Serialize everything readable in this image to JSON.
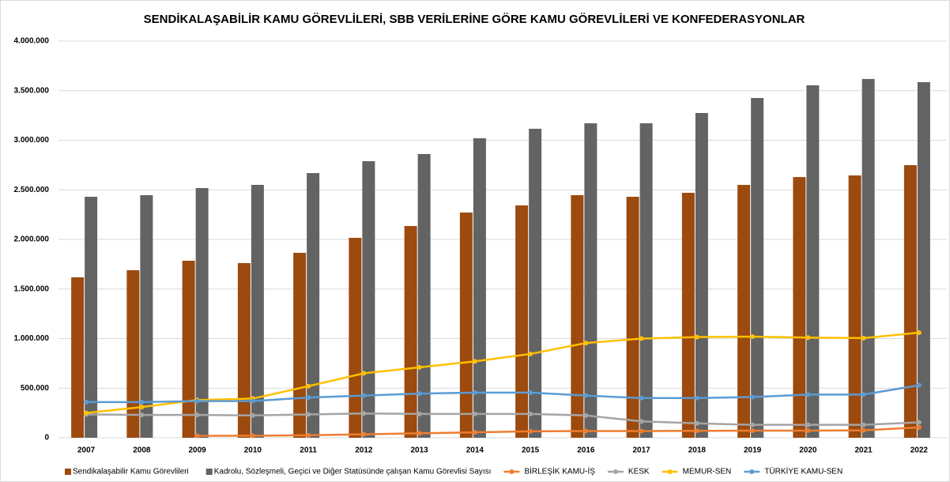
{
  "chart_data": {
    "type": "bar",
    "title": "SENDİKALAŞABİLİR KAMU GÖREVLİLERİ, SBB VERİLERİNE GÖRE KAMU GÖREVLİLERİ VE KONFEDERASYONLAR",
    "categories": [
      "2007",
      "2008",
      "2009",
      "2010",
      "2011",
      "2012",
      "2013",
      "2014",
      "2015",
      "2016",
      "2017",
      "2018",
      "2019",
      "2020",
      "2021",
      "2022"
    ],
    "ylim": [
      0,
      4000000
    ],
    "yticks": [
      0,
      {
        "value": 500000,
        "label": "500.000"
      },
      {
        "value": 1000000,
        "label": "1.000.000"
      },
      {
        "value": 1500000,
        "label": "1.500.000"
      },
      {
        "value": 2000000,
        "label": "2.000.000"
      },
      {
        "value": 2500000,
        "label": "2.500.000"
      },
      {
        "value": 3000000,
        "label": "3.000.000"
      },
      {
        "value": 3500000,
        "label": "3.500.000"
      },
      {
        "value": 4000000,
        "label": "4.000.000"
      }
    ],
    "grid": true,
    "legend": "bottom",
    "series": [
      {
        "name": "Sendikalaşabilir Kamu Görevlileri",
        "type": "bar",
        "color": "#9c4a0e",
        "values": [
          1618000,
          1689000,
          1785000,
          1761000,
          1865000,
          2016000,
          2135000,
          2271000,
          2343000,
          2446000,
          2430000,
          2470000,
          2550000,
          2629000,
          2645000,
          2749000
        ]
      },
      {
        "name": "Kadrolu, Sözleşmeli, Geçici ve Diğer Statüsünde çalışan Kamu Görevlisi Sayısı",
        "type": "bar",
        "color": "#636363",
        "values": [
          2430000,
          2446000,
          2518000,
          2550000,
          2669000,
          2789000,
          2861000,
          3020000,
          3116000,
          3171000,
          3171000,
          3275000,
          3426000,
          3554000,
          3618000,
          3586000
        ]
      },
      {
        "name": "BİRLEŞİK KAMU-İŞ",
        "type": "line",
        "color": "#ed7d31",
        "values": [
          null,
          null,
          20000,
          20000,
          25000,
          35000,
          45000,
          55000,
          65000,
          68000,
          68000,
          70000,
          72000,
          72000,
          75000,
          105000
        ]
      },
      {
        "name": "KESK",
        "type": "line",
        "color": "#a5a5a5",
        "values": [
          235000,
          230000,
          230000,
          225000,
          235000,
          245000,
          240000,
          240000,
          240000,
          225000,
          165000,
          145000,
          130000,
          130000,
          130000,
          155000
        ]
      },
      {
        "name": "MEMUR-SEN",
        "type": "line",
        "color": "#ffc000",
        "values": [
          250000,
          310000,
          380000,
          395000,
          520000,
          650000,
          710000,
          770000,
          845000,
          955000,
          1000000,
          1015000,
          1020000,
          1010000,
          1005000,
          1060000
        ]
      },
      {
        "name": "TÜRKİYE KAMU-SEN",
        "type": "line",
        "color": "#5b9bd5",
        "values": [
          360000,
          360000,
          370000,
          370000,
          405000,
          425000,
          445000,
          455000,
          455000,
          425000,
          400000,
          400000,
          410000,
          435000,
          435000,
          530000
        ]
      }
    ]
  }
}
